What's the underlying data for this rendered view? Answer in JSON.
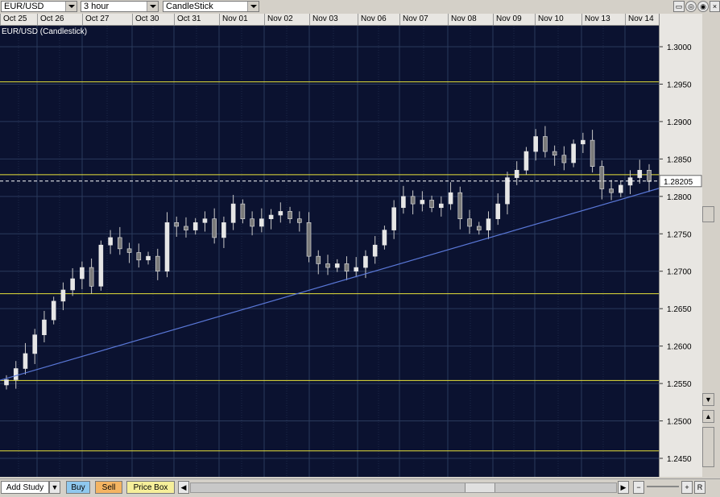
{
  "toolbar": {
    "symbol": "EUR/USD",
    "period": "3 hour",
    "chart_type": "CandleStick"
  },
  "date_labels": [
    "Oct 25",
    "Oct 26",
    "Oct 27",
    "Oct 30",
    "Oct 31",
    "Nov 01",
    "Nov 02",
    "Nov 03",
    "Nov 06",
    "Nov 07",
    "Nov 08",
    "Nov 09",
    "Nov 10",
    "Nov 13",
    "Nov 14"
  ],
  "chart_title": "EUR/USD (Candlestick)",
  "price_labels": [
    "1.3000",
    "1.2950",
    "1.2900",
    "1.2850",
    "1.2800",
    "1.2750",
    "1.2700",
    "1.2650",
    "1.2600",
    "1.2550",
    "1.2500",
    "1.2450"
  ],
  "current_price": "1.28205",
  "colors": {
    "background": "#0b1230",
    "grid": "#2a3a5c",
    "hline": "#e8e23a",
    "trendline": "#5a78d8",
    "candle": "#c8c8c8",
    "candle_body_down": "#7a7a7a"
  },
  "bottom": {
    "add_study": "Add Study",
    "buy": "Buy",
    "sell": "Sell",
    "price_box": "Price Box"
  },
  "chart_data": {
    "type": "candlestick",
    "title": "EUR/USD (Candlestick)",
    "ylim": [
      1.243,
      1.305
    ],
    "categories": [
      "Oct 25",
      "Oct 26",
      "Oct 27",
      "Oct 30",
      "Oct 31",
      "Nov 01",
      "Nov 02",
      "Nov 03",
      "Nov 06",
      "Nov 07",
      "Nov 08",
      "Nov 09",
      "Nov 10",
      "Nov 13",
      "Nov 14"
    ],
    "horizontal_lines": [
      1.2953,
      1.2829,
      1.267,
      1.2554,
      1.246
    ],
    "trendline": {
      "from": {
        "category": "Oct 25",
        "price": 1.255
      },
      "to": {
        "category": "Nov 14",
        "price": 1.2815
      }
    },
    "last_price": 1.28205,
    "series_close": [
      1.2555,
      1.257,
      1.259,
      1.2615,
      1.2635,
      1.266,
      1.2675,
      1.269,
      1.2705,
      1.268,
      1.2735,
      1.2745,
      1.273,
      1.2725,
      1.2715,
      1.272,
      1.27,
      1.2765,
      1.276,
      1.2755,
      1.2765,
      1.277,
      1.2745,
      1.2765,
      1.279,
      1.277,
      1.276,
      1.277,
      1.2775,
      1.278,
      1.277,
      1.2765,
      1.272,
      1.271,
      1.2705,
      1.271,
      1.27,
      1.2705,
      1.272,
      1.2735,
      1.2755,
      1.2785,
      1.28,
      1.279,
      1.2795,
      1.2785,
      1.279,
      1.2805,
      1.277,
      1.276,
      1.2755,
      1.277,
      1.279,
      1.2825,
      1.2835,
      1.286,
      1.288,
      1.286,
      1.2855,
      1.2845,
      1.287,
      1.2875,
      1.284,
      1.281,
      1.2805,
      1.2815,
      1.2825,
      1.2835,
      1.282
    ]
  }
}
